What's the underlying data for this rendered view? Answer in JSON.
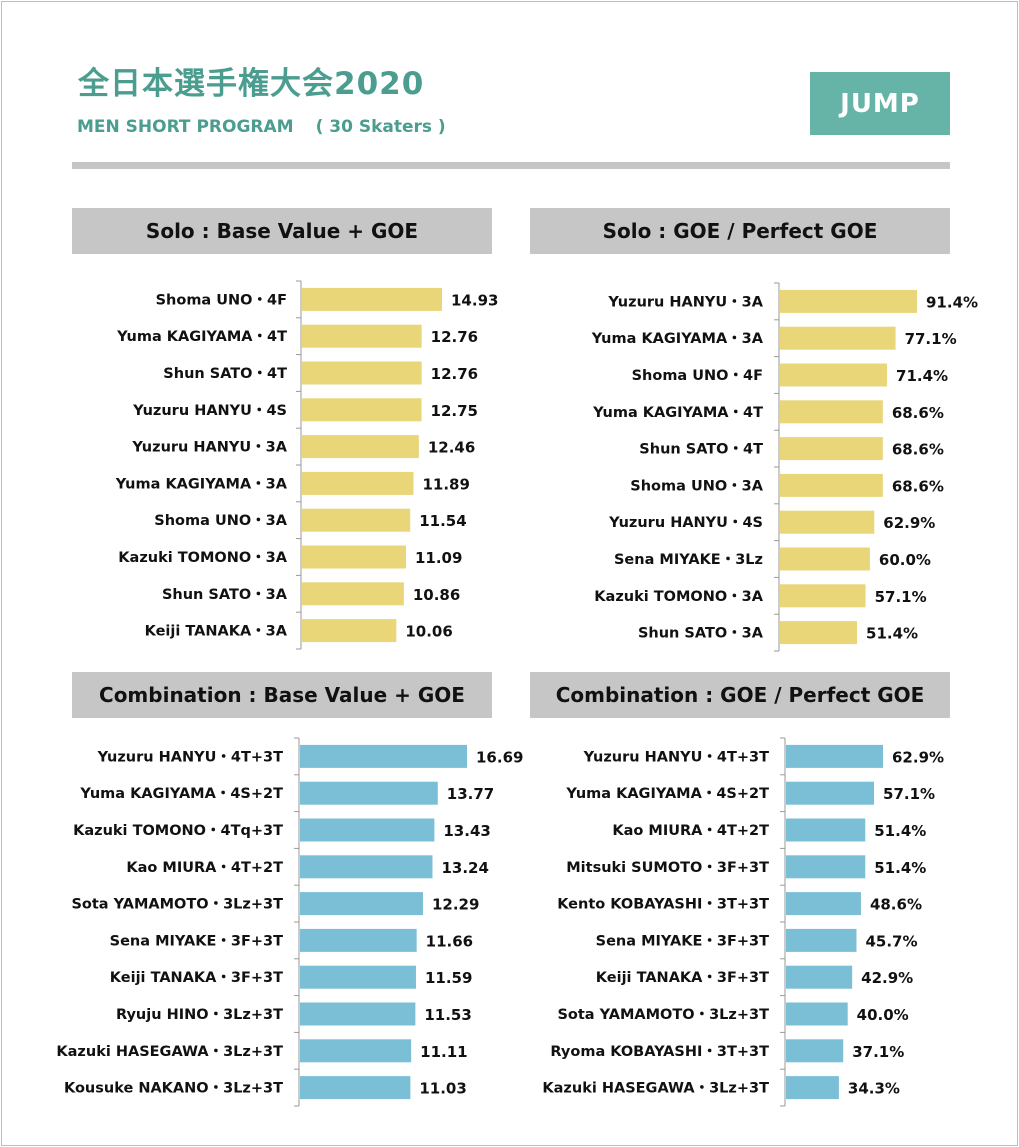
{
  "header": {
    "title": "全日本選手権大会2020",
    "subtitle": "MEN SHORT PROGRAM",
    "skaters": "( 30 Skaters )",
    "badge": "JUMP"
  },
  "colors": {
    "accent": "#4a9d8f",
    "badge": "#66b3a7",
    "panel": "#c6c6c6",
    "solo_bar": "#e8d679",
    "combo_bar": "#7bbfd6"
  },
  "chart_data": [
    {
      "id": "solo-bv",
      "type": "bar",
      "orientation": "horizontal",
      "title": "Solo : Base Value + GOE",
      "color": "#e8d679",
      "max": 14.93,
      "categories": [
        "Shoma UNO・4F",
        "Yuma KAGIYAMA・4T",
        "Shun SATO・4T",
        "Yuzuru HANYU・4S",
        "Yuzuru HANYU・3A",
        "Yuma KAGIYAMA・3A",
        "Shoma UNO・3A",
        "Kazuki TOMONO・3A",
        "Shun SATO・3A",
        "Keiji TANAKA・3A"
      ],
      "values": [
        14.93,
        12.76,
        12.76,
        12.75,
        12.46,
        11.89,
        11.54,
        11.09,
        10.86,
        10.06
      ],
      "labels": [
        "14.93",
        "12.76",
        "12.76",
        "12.75",
        "12.46",
        "11.89",
        "11.54",
        "11.09",
        "10.86",
        "10.06"
      ]
    },
    {
      "id": "solo-pct",
      "type": "bar",
      "orientation": "horizontal",
      "title": "Solo : GOE / Perfect GOE",
      "color": "#e8d679",
      "max": 91.4,
      "categories": [
        "Yuzuru HANYU・3A",
        "Yuma KAGIYAMA・3A",
        "Shoma UNO・4F",
        "Yuma KAGIYAMA・4T",
        "Shun SATO・4T",
        "Shoma UNO・3A",
        "Yuzuru HANYU・4S",
        "Sena MIYAKE・3Lz",
        "Kazuki TOMONO・3A",
        "Shun SATO・3A"
      ],
      "values": [
        91.4,
        77.1,
        71.4,
        68.6,
        68.6,
        68.6,
        62.9,
        60.0,
        57.1,
        51.4
      ],
      "labels": [
        "91.4%",
        "77.1%",
        "71.4%",
        "68.6%",
        "68.6%",
        "68.6%",
        "62.9%",
        "60.0%",
        "57.1%",
        "51.4%"
      ]
    },
    {
      "id": "combo-bv",
      "type": "bar",
      "orientation": "horizontal",
      "title": "Combination : Base Value + GOE",
      "color": "#7bbfd6",
      "max": 16.69,
      "categories": [
        "Yuzuru HANYU・4T+3T",
        "Yuma KAGIYAMA・4S+2T",
        "Kazuki TOMONO・4Tq+3T",
        "Kao MIURA・4T+2T",
        "Sota YAMAMOTO・3Lz+3T",
        "Sena MIYAKE・3F+3T",
        "Keiji TANAKA・3F+3T",
        "Ryuju HINO・3Lz+3T",
        "Kazuki HASEGAWA・3Lz+3T",
        "Kousuke NAKANO・3Lz+3T"
      ],
      "values": [
        16.69,
        13.77,
        13.43,
        13.24,
        12.29,
        11.66,
        11.59,
        11.53,
        11.11,
        11.03
      ],
      "labels": [
        "16.69",
        "13.77",
        "13.43",
        "13.24",
        "12.29",
        "11.66",
        "11.59",
        "11.53",
        "11.11",
        "11.03"
      ]
    },
    {
      "id": "combo-pct",
      "type": "bar",
      "orientation": "horizontal",
      "title": "Combination : GOE / Perfect GOE",
      "color": "#7bbfd6",
      "max": 62.9,
      "categories": [
        "Yuzuru HANYU・4T+3T",
        "Yuma KAGIYAMA・4S+2T",
        "Kao MIURA・4T+2T",
        "Mitsuki SUMOTO・3F+3T",
        "Kento KOBAYASHI・3T+3T",
        "Sena MIYAKE・3F+3T",
        "Keiji TANAKA・3F+3T",
        "Sota YAMAMOTO・3Lz+3T",
        "Ryoma KOBAYASHI・3T+3T",
        "Kazuki HASEGAWA・3Lz+3T"
      ],
      "values": [
        62.9,
        57.1,
        51.4,
        51.4,
        48.6,
        45.7,
        42.9,
        40.0,
        37.1,
        34.3
      ],
      "labels": [
        "62.9%",
        "57.1%",
        "51.4%",
        "51.4%",
        "48.6%",
        "45.7%",
        "42.9%",
        "40.0%",
        "37.1%",
        "34.3%"
      ]
    }
  ]
}
